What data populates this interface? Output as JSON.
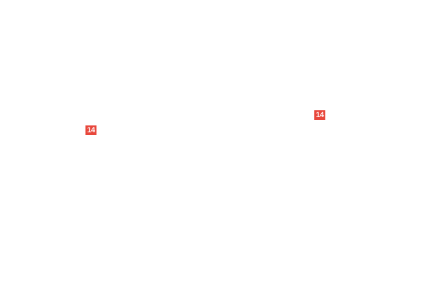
{
  "colors": {
    "badge": "#e8473c"
  },
  "badges": [
    {
      "label": "14"
    },
    {
      "label": "14"
    }
  ]
}
